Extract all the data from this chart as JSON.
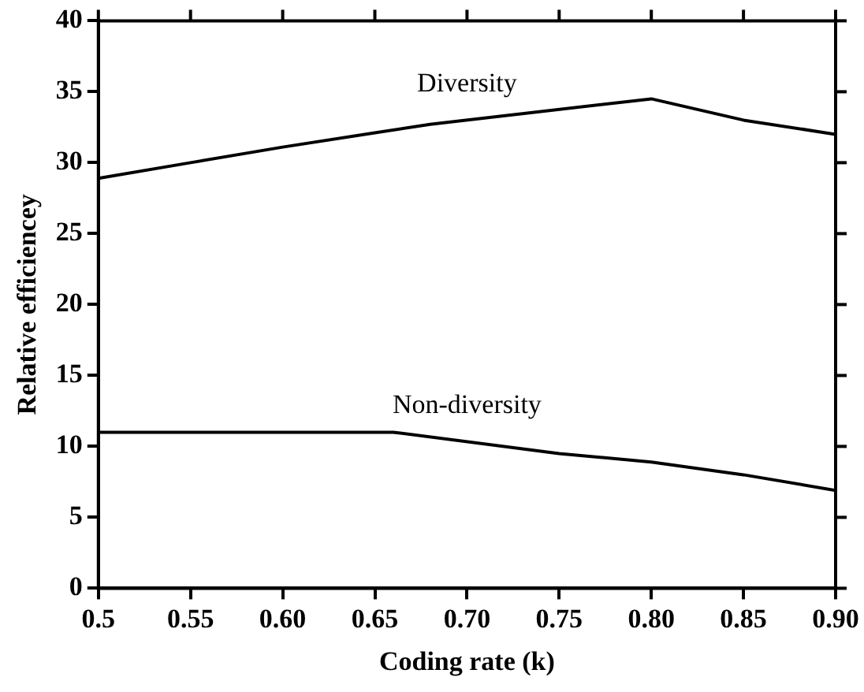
{
  "chart_data": {
    "type": "line",
    "xlabel": "Coding rate (k)",
    "ylabel": "Relative efficiencey",
    "xlim": [
      0.5,
      0.9
    ],
    "xticks": [
      0.5,
      0.55,
      {
        "value": 0.6,
        "label": "0.60"
      },
      0.65,
      {
        "value": 0.7,
        "label": "0.70"
      },
      0.75,
      {
        "value": 0.8,
        "label": "0.80"
      },
      0.85,
      {
        "value": 0.9,
        "label": "0.90"
      }
    ],
    "ylim": [
      0,
      40
    ],
    "yticks": [
      0,
      5,
      10,
      15,
      20,
      25,
      30,
      35,
      40
    ],
    "grid": false,
    "legend": false,
    "marker": "none",
    "line_style": "solid",
    "series": [
      {
        "name": "Diversity",
        "color": "#000000",
        "x": [
          0.5,
          0.55,
          0.6,
          0.65,
          0.68,
          0.8,
          0.85,
          0.9
        ],
        "values": [
          28.9,
          30,
          31.1,
          32.1,
          32.7,
          34.5,
          33,
          32
        ]
      },
      {
        "name": "Non-diversity",
        "color": "#000000",
        "x": [
          0.5,
          0.66,
          0.75,
          0.8,
          0.85,
          0.9
        ],
        "values": [
          11,
          11,
          9.5,
          8.9,
          8,
          6.9
        ]
      }
    ]
  }
}
